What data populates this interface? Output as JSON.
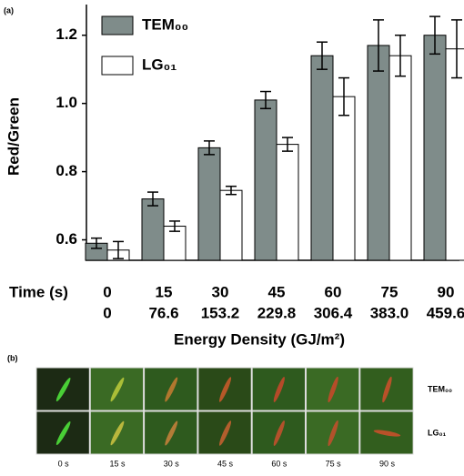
{
  "chart_data": {
    "type": "bar",
    "panel_label": "(a)",
    "ylabel": "Red/Green",
    "xlabel": "Energy Density (GJ/m²)",
    "x_row_label": "Time (s)",
    "categories": [
      "0",
      "15",
      "30",
      "45",
      "60",
      "75",
      "90"
    ],
    "energy_labels": [
      "0",
      "76.6",
      "153.2",
      "229.8",
      "306.4",
      "383.0",
      "459.6"
    ],
    "series": [
      {
        "name": "TEM₀₀",
        "color": "#7f8c8a",
        "values": [
          0.59,
          0.72,
          0.87,
          1.01,
          1.14,
          1.17,
          1.2
        ],
        "errors": [
          0.015,
          0.02,
          0.02,
          0.025,
          0.04,
          0.075,
          0.055
        ]
      },
      {
        "name": "LG₀₁",
        "color": "#ffffff",
        "values": [
          0.57,
          0.64,
          0.745,
          0.88,
          1.02,
          1.14,
          1.16
        ],
        "errors": [
          0.025,
          0.015,
          0.012,
          0.02,
          0.055,
          0.06,
          0.085
        ]
      }
    ],
    "ylim": [
      0.54,
      1.29
    ],
    "yticks": [
      {
        "value": 0.6,
        "label": "0.6"
      },
      {
        "value": 0.8,
        "label": "0.8"
      },
      {
        "value": 1.0,
        "label": "1.0"
      },
      {
        "value": 1.2,
        "label": "1.2"
      }
    ],
    "legend": "upper left"
  },
  "image_panel": {
    "panel_label": "(b)",
    "row_labels": [
      "TEM₀₀",
      "LG₀₁"
    ],
    "col_labels": [
      "0 s",
      "15 s",
      "30 s",
      "45 s",
      "60 s",
      "75 s",
      "90 s"
    ]
  }
}
